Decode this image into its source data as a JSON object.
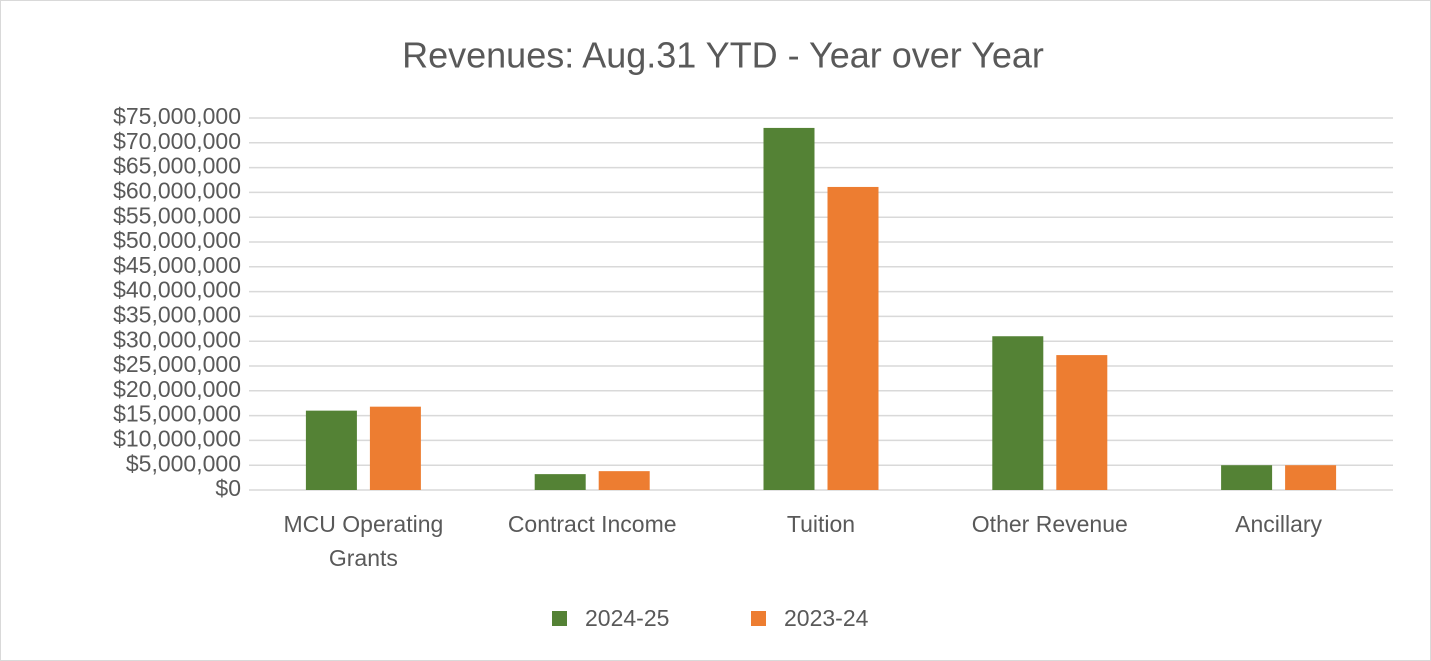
{
  "chart_data": {
    "type": "bar",
    "title": "Revenues:  Aug.31 YTD - Year over Year",
    "categories": [
      "MCU Operating Grants",
      "Contract Income",
      "Tuition",
      "Other Revenue",
      "Ancillary"
    ],
    "series": [
      {
        "name": "2024-25",
        "color": "#548235",
        "values": [
          16000000,
          3200000,
          73000000,
          31000000,
          5000000
        ]
      },
      {
        "name": "2023-24",
        "color": "#ed7d31",
        "values": [
          16800000,
          3800000,
          61100000,
          27200000,
          5000000
        ]
      }
    ],
    "ylim": [
      0,
      75000000
    ],
    "yticks": [
      {
        "value": 0,
        "label": "$0"
      },
      {
        "value": 5000000,
        "label": "$5,000,000"
      },
      {
        "value": 10000000,
        "label": "$10,000,000"
      },
      {
        "value": 15000000,
        "label": "$15,000,000"
      },
      {
        "value": 20000000,
        "label": "$20,000,000"
      },
      {
        "value": 25000000,
        "label": "$25,000,000"
      },
      {
        "value": 30000000,
        "label": "$30,000,000"
      },
      {
        "value": 35000000,
        "label": "$35,000,000"
      },
      {
        "value": 40000000,
        "label": "$40,000,000"
      },
      {
        "value": 45000000,
        "label": "$45,000,000"
      },
      {
        "value": 50000000,
        "label": "$50,000,000"
      },
      {
        "value": 55000000,
        "label": "$55,000,000"
      },
      {
        "value": 60000000,
        "label": "$60,000,000"
      },
      {
        "value": 65000000,
        "label": "$65,000,000"
      },
      {
        "value": 70000000,
        "label": "$70,000,000"
      },
      {
        "value": 75000000,
        "label": "$75,000,000"
      }
    ],
    "grid": true,
    "legend": "bottom"
  }
}
